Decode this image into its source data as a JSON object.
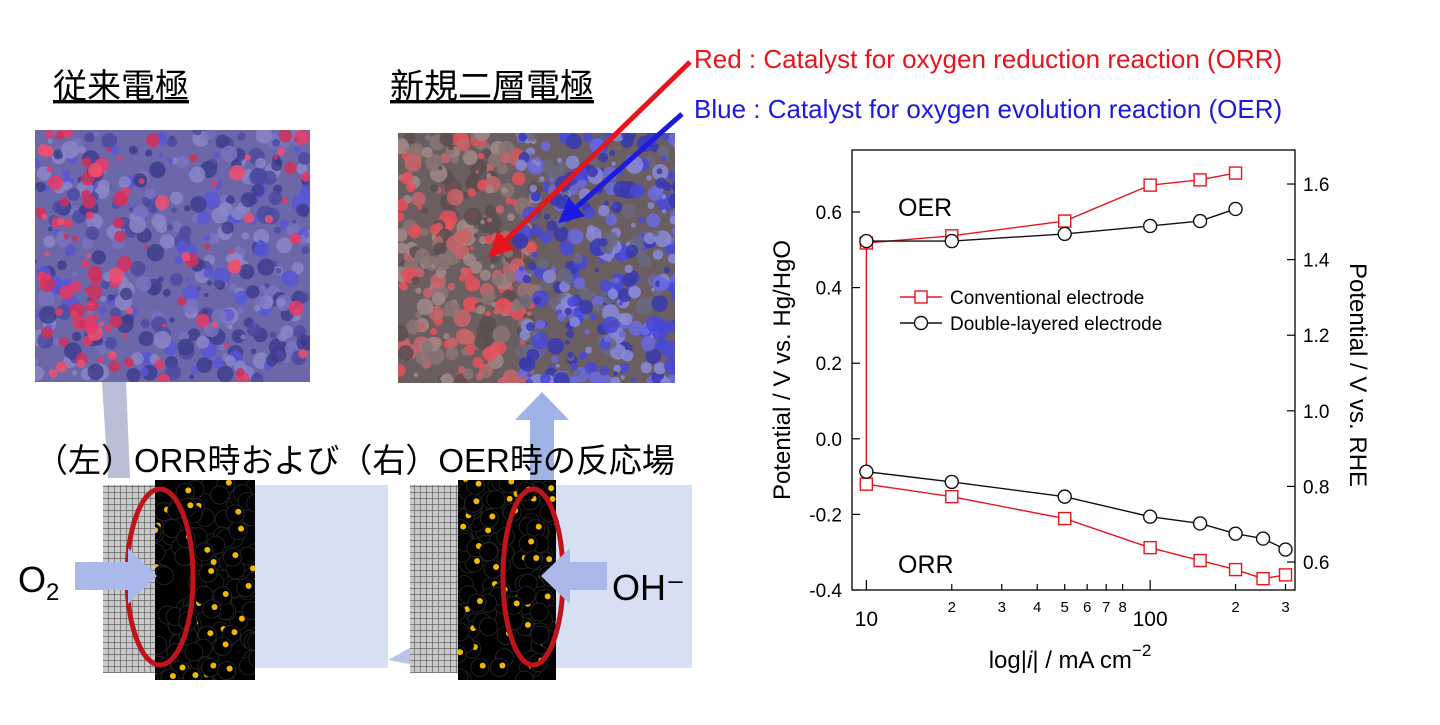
{
  "labels": {
    "conventional_title": "従来電極",
    "new_title": "新規二層電極",
    "red_note": "Red : Catalyst for oxygen reduction reaction  (ORR)",
    "blue_note": "Blue : Catalyst for oxygen evolution reaction (OER)",
    "reaction_caption": "（左）ORR時および（右）OER時の反応場",
    "o2": [
      "O",
      "2"
    ],
    "oh": "OH⁻"
  },
  "chart_data": {
    "type": "line",
    "xlabel": [
      "log|",
      "i",
      "| / mA cm",
      "−2"
    ],
    "ylabel": "Potential / V vs. Hg/HgO",
    "y2label": "Potential / V vs. RHE",
    "annotations": [
      "OER",
      "ORR"
    ],
    "xscale": "log",
    "xlim": [
      8.9,
      324
    ],
    "ylim": [
      -0.4,
      0.764
    ],
    "y2lim": [
      0.526,
      1.69
    ],
    "xticks": [
      10,
      {
        "value": 20,
        "label": "2"
      },
      {
        "value": 30,
        "label": "3"
      },
      {
        "value": 40,
        "label": "4"
      },
      {
        "value": 50,
        "label": "5"
      },
      {
        "value": 60,
        "label": "6"
      },
      {
        "value": 70,
        "label": "7"
      },
      {
        "value": 80,
        "label": "8"
      },
      100,
      {
        "value": 200,
        "label": "2"
      },
      {
        "value": 300,
        "label": "3"
      }
    ],
    "yticks": [
      -0.4,
      -0.2,
      {
        "value": 0,
        "label": "0.0"
      },
      0.2,
      0.4,
      0.6
    ],
    "y2ticks": [
      0.6,
      0.8,
      {
        "value": 1,
        "label": "1.0"
      },
      1.2,
      1.4,
      1.6
    ],
    "series": [
      {
        "name": "Conventional electrode",
        "color": "#e8141c",
        "marker": "square",
        "x": [
          300,
          250,
          200,
          150,
          100,
          50,
          20,
          10,
          10,
          20,
          50,
          100,
          150,
          200
        ],
        "values": [
          -0.36,
          -0.37,
          -0.346,
          -0.322,
          -0.288,
          -0.211,
          -0.153,
          -0.12,
          0.518,
          0.537,
          0.576,
          0.671,
          0.685,
          0.703
        ]
      },
      {
        "name": "Double-layered electrode",
        "color": "#111111",
        "marker": "circle",
        "x": [
          300,
          250,
          200,
          150,
          100,
          50,
          20,
          10,
          null,
          10,
          20,
          50,
          100,
          150,
          200
        ],
        "values": [
          -0.293,
          -0.264,
          -0.251,
          -0.224,
          -0.206,
          -0.153,
          -0.114,
          -0.087,
          null,
          0.523,
          0.523,
          0.542,
          0.563,
          0.576,
          0.608
        ]
      }
    ]
  }
}
